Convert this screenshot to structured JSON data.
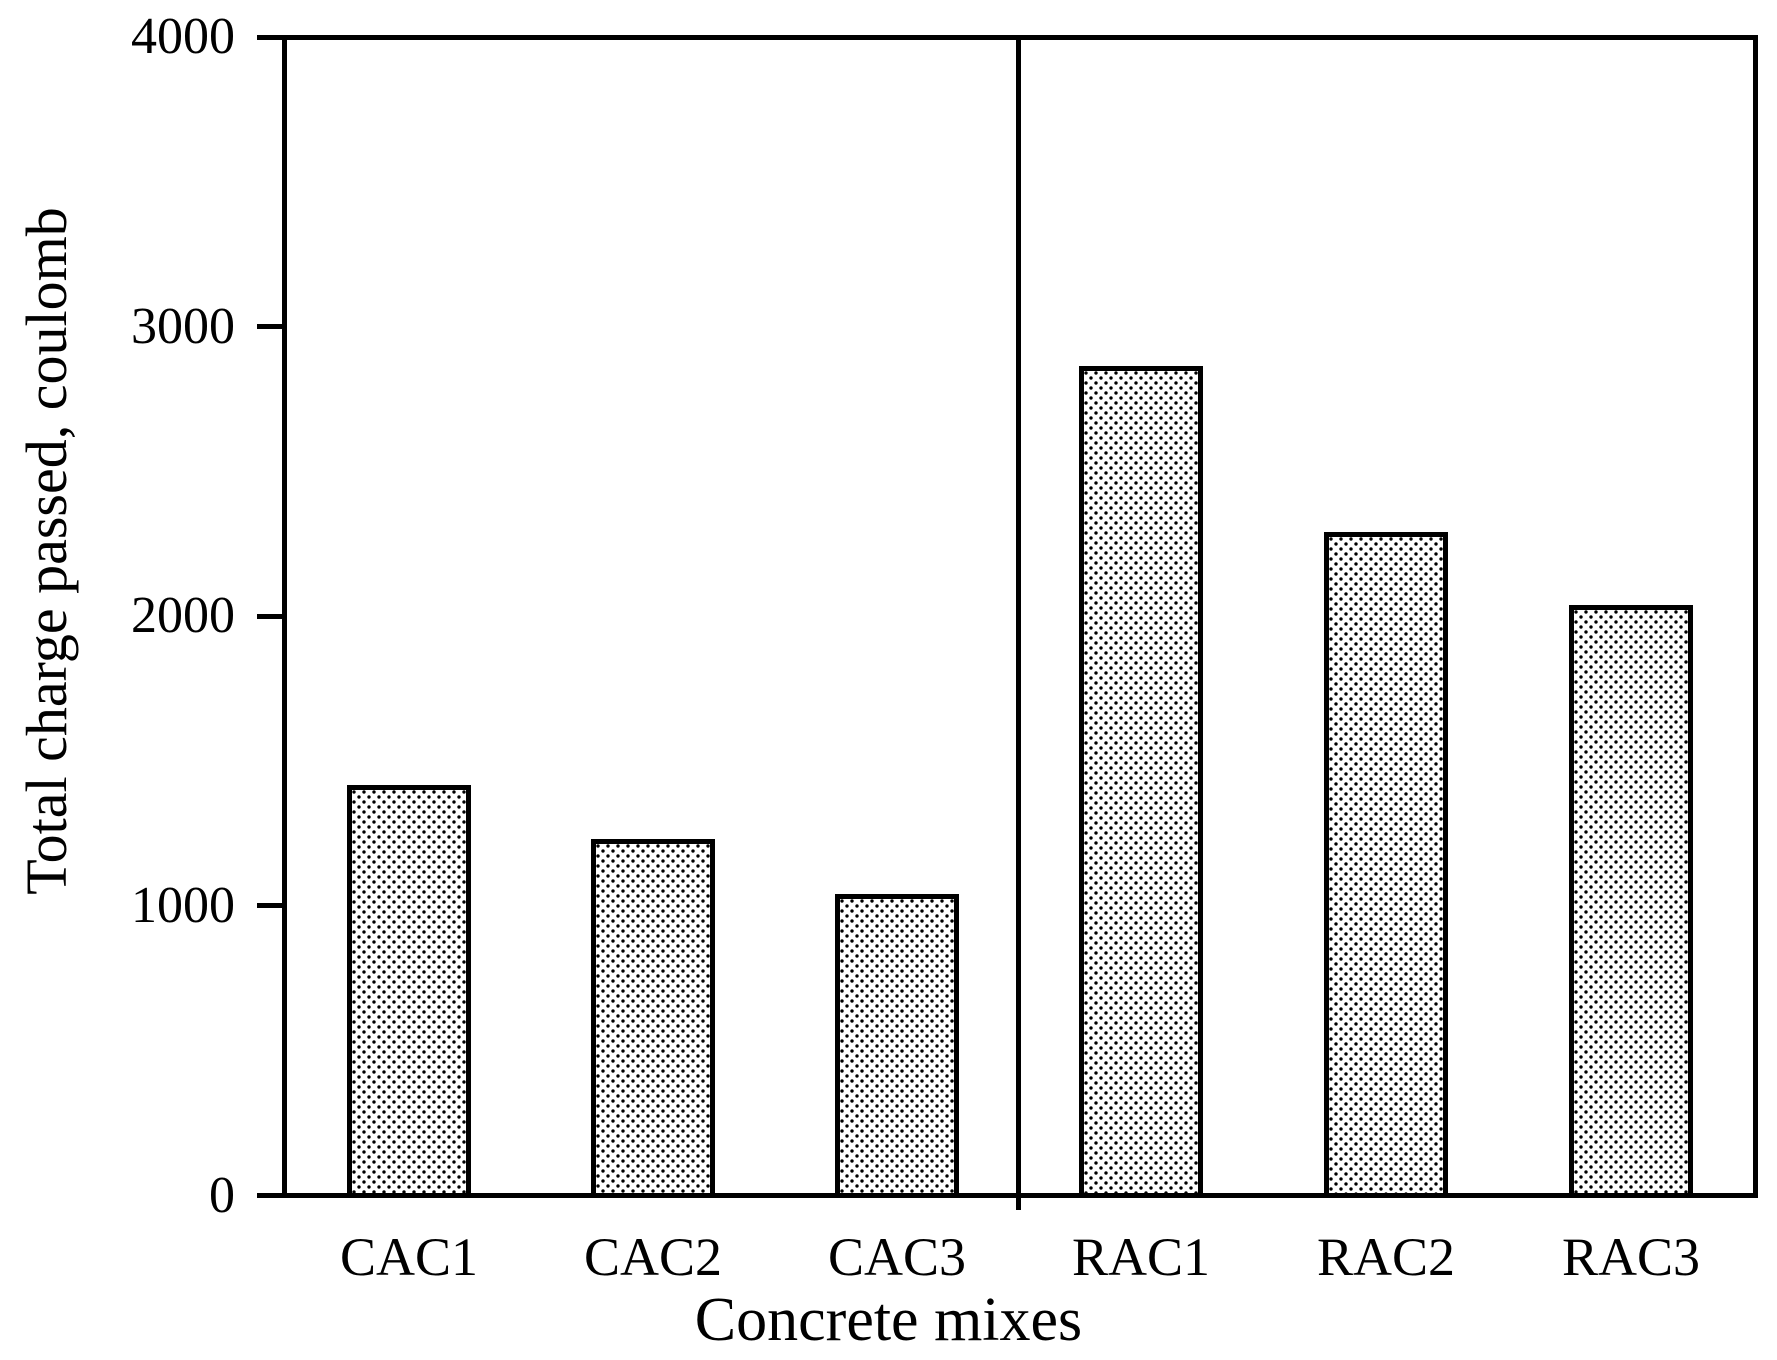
{
  "chart_data": {
    "type": "bar",
    "title": "",
    "xlabel": "Concrete mixes",
    "ylabel": "Total charge passed, coulomb",
    "categories": [
      "CAC1",
      "CAC2",
      "CAC3",
      "RAC1",
      "RAC2",
      "RAC3"
    ],
    "values": [
      1425,
      1240,
      1050,
      2875,
      2300,
      2050
    ],
    "series": [
      {
        "name": "Total charge passed",
        "values": [
          1425,
          1240,
          1050,
          2875,
          2300,
          2050
        ]
      }
    ],
    "groups": [
      {
        "name": "CAC",
        "categories": [
          "CAC1",
          "CAC2",
          "CAC3"
        ]
      },
      {
        "name": "RAC",
        "categories": [
          "RAC1",
          "RAC2",
          "RAC3"
        ]
      }
    ],
    "ylim": [
      0,
      4000
    ],
    "yticks": [
      0,
      1000,
      2000,
      3000,
      4000
    ],
    "grid": false,
    "legend": false,
    "bar_style": {
      "fill": "#ffffff",
      "pattern": "black square dot stipple",
      "border_color": "#000000"
    },
    "annotations": [
      "vertical divider line between CAC3 and RAC1 groups"
    ]
  },
  "colors": {
    "foreground": "#000000",
    "background": "#ffffff"
  }
}
